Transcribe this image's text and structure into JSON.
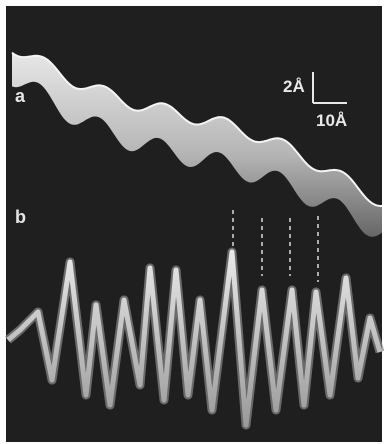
{
  "figure": {
    "panels": [
      {
        "label": "a"
      },
      {
        "label": "b"
      }
    ],
    "scale_bar": {
      "vertical_label": "2Å",
      "horizontal_label": "10Å"
    },
    "colors": {
      "background": "#202020",
      "trace": "#d8d8d8",
      "trace_shadow": "#8a8a8a",
      "guides": "#d0d0d0"
    }
  }
}
